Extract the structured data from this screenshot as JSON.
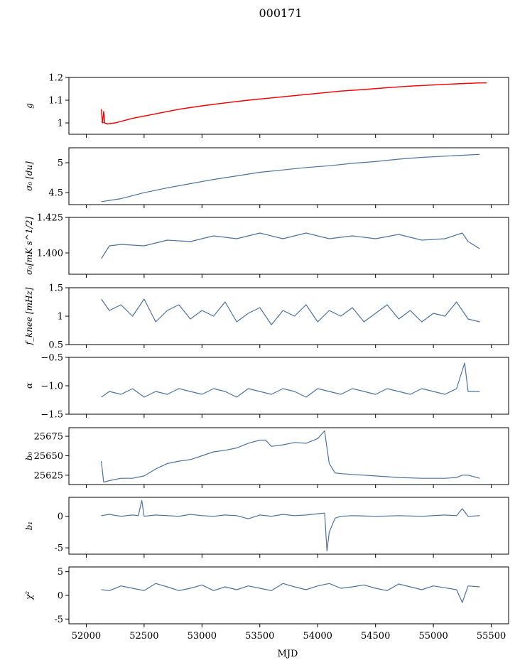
{
  "figure": {
    "title": "000171",
    "xlabel": "MJD"
  },
  "chart_data": [
    {
      "type": "line",
      "id": "g",
      "ylabel": "g",
      "ylim": [
        0.95,
        1.2
      ],
      "yticks": [
        1.0,
        1.1,
        1.2
      ],
      "series": [
        {
          "color": "#4c72a0",
          "x": [
            52130,
            52180,
            52250,
            52400,
            52600,
            52800,
            53000,
            53200,
            53400,
            53600,
            53800,
            54000,
            54200,
            54400,
            54600,
            54800,
            55000,
            55200,
            55400
          ],
          "y": [
            1.005,
            0.995,
            1.0,
            1.02,
            1.04,
            1.06,
            1.075,
            1.088,
            1.1,
            1.11,
            1.12,
            1.13,
            1.14,
            1.147,
            1.155,
            1.162,
            1.167,
            1.172,
            1.176
          ]
        },
        {
          "color": "#ff0000",
          "x": [
            52130,
            52140,
            52150,
            52160,
            52180,
            52250,
            52400,
            52600,
            52800,
            53000,
            53200,
            53400,
            53600,
            53800,
            54000,
            54200,
            54400,
            54600,
            54800,
            55000,
            55200,
            55400,
            55460
          ],
          "y": [
            1.06,
            1.0,
            1.05,
            1.0,
            0.996,
            1.0,
            1.02,
            1.04,
            1.06,
            1.075,
            1.088,
            1.1,
            1.11,
            1.12,
            1.13,
            1.14,
            1.147,
            1.155,
            1.162,
            1.167,
            1.172,
            1.176,
            1.176
          ]
        }
      ]
    },
    {
      "type": "line",
      "id": "sigma0",
      "ylabel": "σ₀ [du]",
      "ylim": [
        4.3,
        5.25
      ],
      "yticks": [
        4.5,
        5.0
      ],
      "series": [
        {
          "color": "#4c72a0",
          "x": [
            52130,
            52300,
            52500,
            52700,
            52900,
            53100,
            53300,
            53500,
            53700,
            53900,
            54100,
            54300,
            54500,
            54700,
            54900,
            55100,
            55300,
            55400
          ],
          "y": [
            4.35,
            4.4,
            4.5,
            4.58,
            4.65,
            4.72,
            4.78,
            4.84,
            4.88,
            4.92,
            4.95,
            4.99,
            5.02,
            5.06,
            5.09,
            5.11,
            5.13,
            5.14
          ]
        }
      ]
    },
    {
      "type": "line",
      "id": "sigma0c",
      "ylabel": "σ₀[mK s^1/2]",
      "ylim": [
        1.385,
        1.425
      ],
      "yticks": [
        1.4,
        1.425
      ],
      "ytick_labels": [
        "1.400",
        "1.425"
      ],
      "series": [
        {
          "color": "#4c72a0",
          "x": [
            52130,
            52200,
            52300,
            52500,
            52700,
            52900,
            53100,
            53300,
            53500,
            53700,
            53900,
            54100,
            54300,
            54500,
            54700,
            54900,
            55100,
            55250,
            55300,
            55400
          ],
          "y": [
            1.396,
            1.405,
            1.406,
            1.405,
            1.409,
            1.408,
            1.412,
            1.41,
            1.414,
            1.41,
            1.414,
            1.41,
            1.412,
            1.41,
            1.413,
            1.409,
            1.41,
            1.414,
            1.408,
            1.403
          ]
        }
      ]
    },
    {
      "type": "line",
      "id": "fknee",
      "ylabel": "f_knee [mHz]",
      "ylim": [
        0.5,
        1.5
      ],
      "yticks": [
        0.5,
        1.0,
        1.5
      ],
      "series": [
        {
          "color": "#4c72a0",
          "x": [
            52130,
            52200,
            52300,
            52400,
            52500,
            52600,
            52700,
            52800,
            52900,
            53000,
            53100,
            53200,
            53300,
            53400,
            53500,
            53600,
            53700,
            53800,
            53900,
            54000,
            54100,
            54200,
            54300,
            54400,
            54500,
            54600,
            54700,
            54800,
            54900,
            55000,
            55100,
            55200,
            55300,
            55400
          ],
          "y": [
            1.3,
            1.1,
            1.2,
            1.0,
            1.3,
            0.9,
            1.1,
            1.2,
            0.95,
            1.1,
            1.0,
            1.25,
            0.9,
            1.05,
            1.15,
            0.85,
            1.1,
            1.0,
            1.2,
            0.9,
            1.1,
            1.0,
            1.15,
            0.9,
            1.05,
            1.2,
            0.95,
            1.1,
            0.9,
            1.05,
            1.0,
            1.25,
            0.95,
            0.9
          ]
        }
      ]
    },
    {
      "type": "line",
      "id": "alpha",
      "ylabel": "α",
      "ylim": [
        -1.5,
        -0.5
      ],
      "yticks": [
        -1.5,
        -1.0,
        -0.5
      ],
      "ytick_labels": [
        "−1.5",
        "−1.0",
        "−0.5"
      ],
      "series": [
        {
          "color": "#4c72a0",
          "x": [
            52130,
            52200,
            52300,
            52400,
            52500,
            52600,
            52700,
            52800,
            52900,
            53000,
            53100,
            53200,
            53300,
            53400,
            53500,
            53600,
            53700,
            53800,
            53900,
            54000,
            54100,
            54200,
            54300,
            54400,
            54500,
            54600,
            54700,
            54800,
            54900,
            55000,
            55100,
            55200,
            55270,
            55300,
            55400
          ],
          "y": [
            -1.2,
            -1.1,
            -1.15,
            -1.05,
            -1.2,
            -1.1,
            -1.15,
            -1.05,
            -1.1,
            -1.15,
            -1.05,
            -1.1,
            -1.2,
            -1.05,
            -1.1,
            -1.15,
            -1.05,
            -1.1,
            -1.2,
            -1.05,
            -1.1,
            -1.15,
            -1.05,
            -1.1,
            -1.15,
            -1.05,
            -1.1,
            -1.15,
            -1.05,
            -1.1,
            -1.15,
            -1.05,
            -0.6,
            -1.1,
            -1.1
          ]
        }
      ]
    },
    {
      "type": "line",
      "id": "b0",
      "ylabel": "b₀",
      "ylim": [
        25613,
        25686
      ],
      "yticks": [
        25625,
        25650,
        25675
      ],
      "series": [
        {
          "color": "#4c72a0",
          "x": [
            52130,
            52150,
            52200,
            52300,
            52400,
            52500,
            52600,
            52700,
            52800,
            52900,
            53000,
            53100,
            53200,
            53300,
            53400,
            53500,
            53550,
            53600,
            53700,
            53800,
            53900,
            54000,
            54060,
            54080,
            54100,
            54150,
            54200,
            54300,
            54500,
            54700,
            54900,
            55100,
            55200,
            55250,
            55300,
            55400
          ],
          "y": [
            25643,
            25616,
            25618,
            25621,
            25621,
            25624,
            25633,
            25640,
            25643,
            25645,
            25650,
            25655,
            25657,
            25660,
            25666,
            25670,
            25670,
            25662,
            25664,
            25667,
            25666,
            25672,
            25682,
            25660,
            25640,
            25628,
            25627,
            25626,
            25624,
            25622,
            25621,
            25621,
            25622,
            25625,
            25625,
            25621
          ]
        }
      ]
    },
    {
      "type": "line",
      "id": "b1",
      "ylabel": "b₁",
      "ylim": [
        -6,
        3
      ],
      "yticks": [
        -5,
        0
      ],
      "series": [
        {
          "color": "#4c72a0",
          "x": [
            52130,
            52200,
            52300,
            52400,
            52450,
            52480,
            52500,
            52600,
            52700,
            52800,
            52900,
            53000,
            53100,
            53200,
            53300,
            53400,
            53500,
            53600,
            53700,
            53800,
            53900,
            54000,
            54060,
            54080,
            54100,
            54150,
            54200,
            54300,
            54500,
            54700,
            54900,
            55100,
            55200,
            55250,
            55300,
            55400
          ],
          "y": [
            0.1,
            0.3,
            0.0,
            0.2,
            0.1,
            2.5,
            0.0,
            0.2,
            0.1,
            0.0,
            0.3,
            0.1,
            0.0,
            0.2,
            0.1,
            -0.4,
            0.2,
            0.0,
            0.3,
            0.1,
            0.2,
            0.4,
            0.5,
            -5.5,
            -2.5,
            -0.3,
            0.0,
            0.1,
            0.0,
            0.1,
            0.0,
            0.2,
            0.1,
            1.2,
            0.0,
            0.1
          ]
        }
      ]
    },
    {
      "type": "line",
      "id": "chi2",
      "ylabel": "χ²",
      "ylim": [
        -6,
        6
      ],
      "yticks": [
        -5,
        0,
        5
      ],
      "series": [
        {
          "color": "#4c72a0",
          "x": [
            52130,
            52200,
            52300,
            52400,
            52500,
            52600,
            52700,
            52800,
            52900,
            53000,
            53100,
            53200,
            53300,
            53400,
            53500,
            53600,
            53700,
            53800,
            53900,
            54000,
            54100,
            54200,
            54300,
            54400,
            54500,
            54600,
            54700,
            54800,
            54900,
            55000,
            55100,
            55200,
            55250,
            55300,
            55400
          ],
          "y": [
            1.2,
            1.0,
            2.0,
            1.5,
            1.0,
            2.5,
            1.8,
            1.0,
            1.5,
            2.2,
            1.0,
            1.8,
            1.2,
            2.0,
            1.5,
            1.0,
            2.5,
            1.8,
            1.2,
            2.0,
            2.5,
            1.5,
            1.8,
            2.2,
            1.5,
            1.0,
            2.4,
            1.8,
            1.2,
            2.0,
            1.6,
            1.2,
            -1.5,
            2.0,
            1.8
          ]
        }
      ]
    }
  ],
  "xaxis": {
    "xlim": [
      51850,
      55650
    ],
    "ticks": [
      52000,
      52500,
      53000,
      53500,
      54000,
      54500,
      55000,
      55500
    ]
  }
}
